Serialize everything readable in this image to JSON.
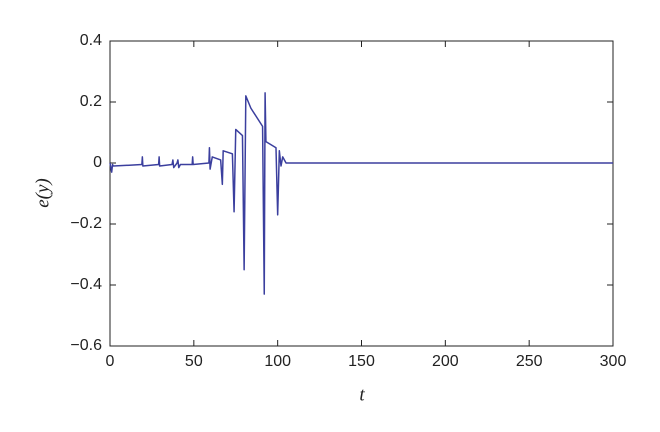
{
  "chart_data": {
    "type": "line",
    "xlabel": "t",
    "ylabel": "e(y)",
    "xlim": [
      0,
      300
    ],
    "ylim": [
      -0.6,
      0.4
    ],
    "xticks": [
      0,
      50,
      100,
      150,
      200,
      250,
      300
    ],
    "yticks": [
      {
        "value": -0.6,
        "label": "−0.6"
      },
      {
        "value": -0.4,
        "label": "−0.4"
      },
      {
        "value": -0.2,
        "label": "−0.2"
      },
      0,
      0.2,
      0.4
    ],
    "x": [
      0,
      1,
      1.5,
      2,
      19,
      19.3,
      19.6,
      29,
      29.3,
      29.6,
      37,
      37.5,
      38,
      40,
      40.5,
      41,
      42,
      49,
      49.3,
      49.6,
      59,
      59.3,
      59.7,
      61,
      66,
      67,
      67.5,
      73,
      74,
      75,
      79,
      80,
      81,
      84,
      91,
      92,
      92.5,
      93,
      99,
      100,
      101,
      102,
      103,
      105,
      120,
      300
    ],
    "series": [
      {
        "color": "#3b3f9e",
        "values": [
          0,
          -0.03,
          -0.005,
          -0.01,
          -0.005,
          0.02,
          -0.01,
          -0.005,
          0.02,
          -0.01,
          -0.005,
          0.01,
          -0.015,
          0.0,
          0.01,
          -0.015,
          -0.005,
          -0.005,
          0.02,
          -0.005,
          0.0,
          0.05,
          -0.02,
          0.02,
          0.01,
          -0.07,
          0.04,
          0.03,
          -0.16,
          0.11,
          0.09,
          -0.35,
          0.22,
          0.18,
          0.12,
          -0.43,
          0.23,
          0.07,
          0.05,
          -0.17,
          0.04,
          -0.01,
          0.02,
          0.0,
          0.0,
          0.0
        ]
      }
    ]
  }
}
